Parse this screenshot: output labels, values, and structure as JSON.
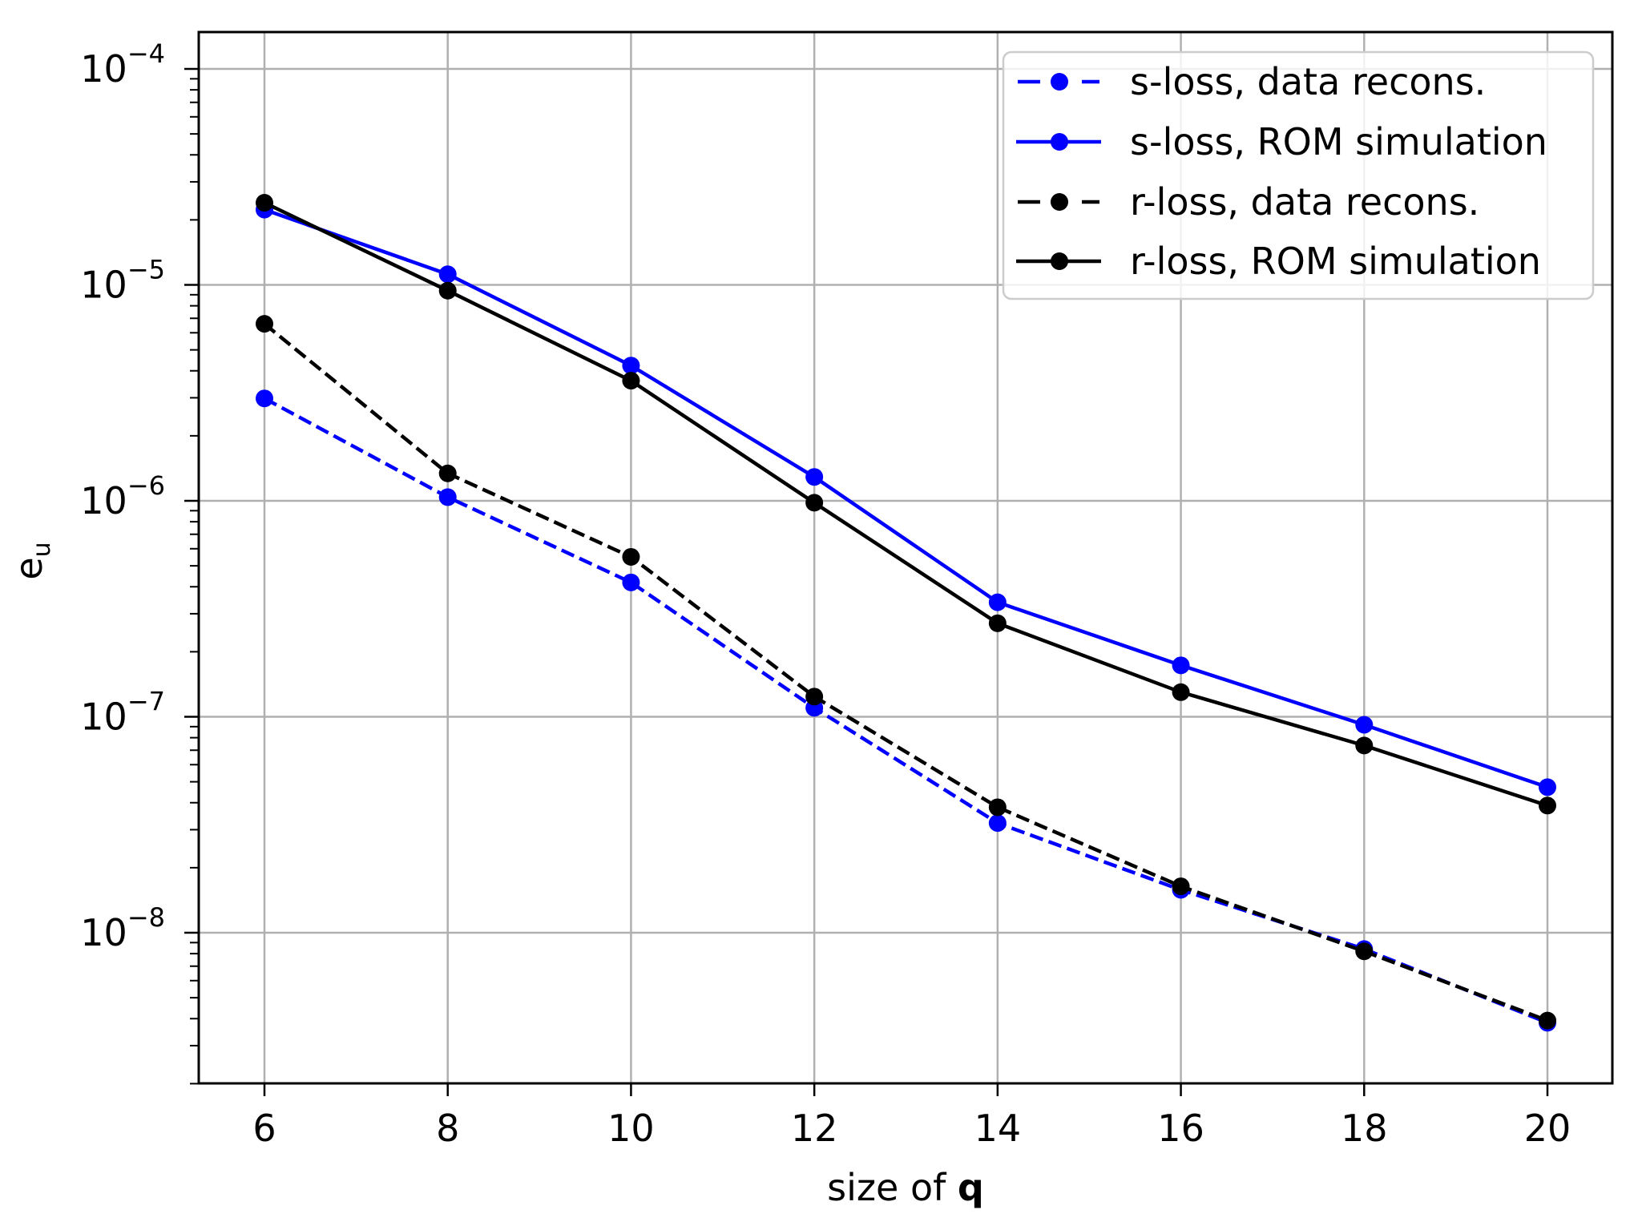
{
  "chart_data": {
    "type": "line",
    "title": "",
    "xlabel": "size of q",
    "xlabel_parts": {
      "prefix": "size of ",
      "bold": "q"
    },
    "ylabel": "e_u",
    "ylabel_parts": {
      "base": "e",
      "sub": "u"
    },
    "yscale": "log",
    "grid": true,
    "legend_position": "upper right",
    "x": [
      6,
      8,
      10,
      12,
      14,
      16,
      18,
      20
    ],
    "xticks": [
      6,
      8,
      10,
      12,
      14,
      16,
      18,
      20
    ],
    "xlim": [
      5.25,
      20.7
    ],
    "ylim": [
      2e-09,
      0.000148
    ],
    "yticks": [
      {
        "exp": -4,
        "label_base": "10",
        "label_exp": "−4"
      },
      {
        "exp": -5,
        "label_base": "10",
        "label_exp": "−5"
      },
      {
        "exp": -6,
        "label_base": "10",
        "label_exp": "−6"
      },
      {
        "exp": -7,
        "label_base": "10",
        "label_exp": "−7"
      },
      {
        "exp": -8,
        "label_base": "10",
        "label_exp": "−8"
      }
    ],
    "series": [
      {
        "name": "s-loss, data recons.",
        "color": "#0000ff",
        "linestyle": "dashed",
        "marker": "circle",
        "values": [
          2.98e-06,
          1.04e-06,
          4.19e-07,
          1.1e-07,
          3.22e-08,
          1.58e-08,
          8.4e-09,
          3.83e-09
        ]
      },
      {
        "name": "s-loss, ROM simulation",
        "color": "#0000ff",
        "linestyle": "solid",
        "marker": "circle",
        "values": [
          2.23e-05,
          1.12e-05,
          4.23e-06,
          1.29e-06,
          3.39e-07,
          1.73e-07,
          9.18e-08,
          4.72e-08
        ]
      },
      {
        "name": "r-loss, data recons.",
        "color": "#000000",
        "linestyle": "dashed",
        "marker": "circle",
        "values": [
          6.6e-06,
          1.34e-06,
          5.5e-07,
          1.24e-07,
          3.81e-08,
          1.64e-08,
          8.2e-09,
          3.92e-09
        ]
      },
      {
        "name": "r-loss, ROM simulation",
        "color": "#000000",
        "linestyle": "solid",
        "marker": "circle",
        "values": [
          2.4e-05,
          9.4e-06,
          3.6e-06,
          9.8e-07,
          2.71e-07,
          1.3e-07,
          7.36e-08,
          3.88e-08
        ]
      }
    ]
  },
  "colors": {
    "grid": "#b0b0b0",
    "axis": "#000000",
    "legend_border": "#cccccc"
  }
}
